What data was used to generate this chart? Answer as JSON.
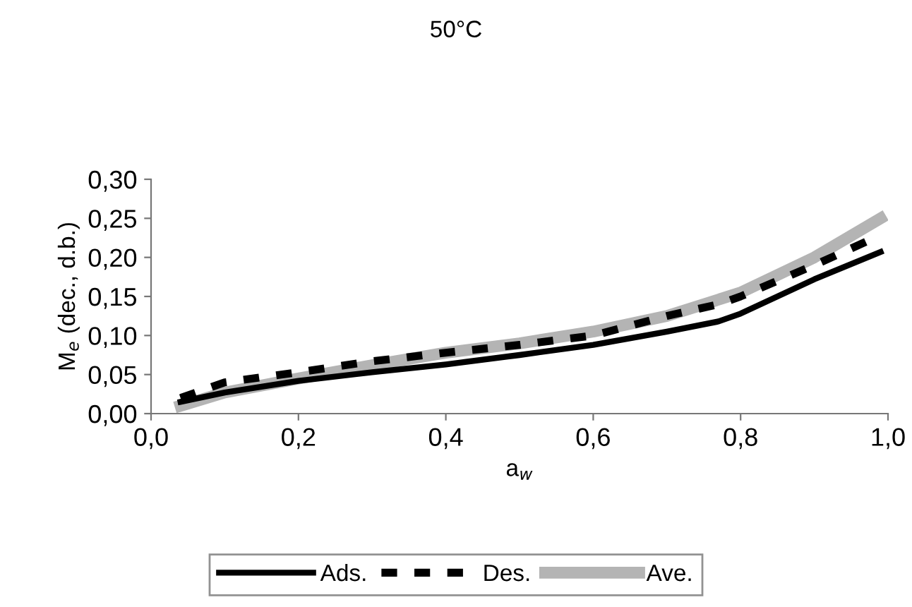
{
  "chart_data": {
    "type": "line",
    "title": "50°C",
    "xlabel": "a$_{w}$",
    "ylabel": "M$_{e}$ (dec., d.b.)",
    "xlim": [
      0,
      1
    ],
    "ylim": [
      0,
      0.3
    ],
    "xticks": [
      {
        "value": 0,
        "label": "0,0"
      },
      {
        "value": 0.2,
        "label": "0,2"
      },
      {
        "value": 0.4,
        "label": "0,4"
      },
      {
        "value": 0.6,
        "label": "0,6"
      },
      {
        "value": 0.8,
        "label": "0,8"
      },
      {
        "value": 1,
        "label": "1,0"
      }
    ],
    "yticks": [
      {
        "value": 0,
        "label": "0,00"
      },
      {
        "value": 0.05,
        "label": "0,05"
      },
      {
        "value": 0.1,
        "label": "0,10"
      },
      {
        "value": 0.15,
        "label": "0,15"
      },
      {
        "value": 0.2,
        "label": "0,20"
      },
      {
        "value": 0.25,
        "label": "0,25"
      },
      {
        "value": 0.3,
        "label": "0,30"
      }
    ],
    "grid": false,
    "legend": "bottom",
    "marker": "none",
    "series": [
      {
        "name": "Ads.",
        "color": "#000000",
        "line_style": "solid",
        "x": [
          0.04,
          0.1,
          0.2,
          0.3,
          0.4,
          0.5,
          0.6,
          0.7,
          0.77,
          0.8,
          0.85,
          0.9,
          0.99
        ],
        "values": [
          0.015,
          0.027,
          0.042,
          0.053,
          0.063,
          0.075,
          0.088,
          0.105,
          0.118,
          0.128,
          0.15,
          0.172,
          0.207
        ]
      },
      {
        "name": "Des.",
        "color": "#000000",
        "line_style": "dashed",
        "x": [
          0.04,
          0.1,
          0.2,
          0.3,
          0.4,
          0.5,
          0.6,
          0.7,
          0.77,
          0.8,
          0.85,
          0.9,
          0.97
        ],
        "values": [
          0.02,
          0.04,
          0.053,
          0.067,
          0.078,
          0.088,
          0.1,
          0.125,
          0.14,
          0.15,
          0.17,
          0.19,
          0.22
        ]
      },
      {
        "name": "Ave.",
        "color": "#b4b4b4",
        "line_style": "solid",
        "x": [
          0.04,
          0.1,
          0.2,
          0.3,
          0.4,
          0.5,
          0.6,
          0.7,
          0.8,
          0.9,
          0.99
        ],
        "values": [
          0.01,
          0.027,
          0.045,
          0.062,
          0.078,
          0.09,
          0.105,
          0.125,
          0.155,
          0.2,
          0.25
        ]
      }
    ]
  }
}
